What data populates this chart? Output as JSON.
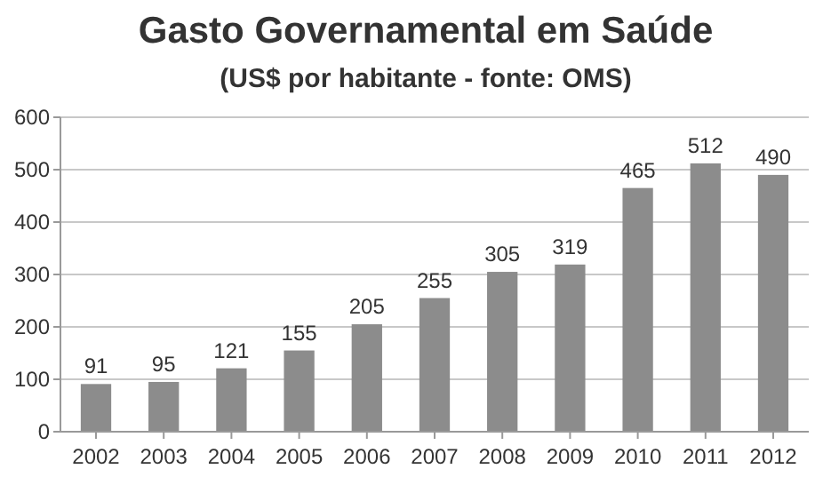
{
  "chart_data": {
    "type": "bar",
    "title": "Gasto Governamental em Saúde",
    "subtitle": "(US$ por habitante - fonte: OMS)",
    "categories": [
      "2002",
      "2003",
      "2004",
      "2005",
      "2006",
      "2007",
      "2008",
      "2009",
      "2010",
      "2011",
      "2012"
    ],
    "values": [
      91,
      95,
      121,
      155,
      205,
      255,
      305,
      319,
      465,
      512,
      490
    ],
    "color": "#8c8c8c",
    "ylim": [
      0,
      600
    ],
    "yticks": [
      0,
      100,
      200,
      300,
      400,
      500,
      600
    ],
    "grid": "y",
    "data_labels": true
  }
}
